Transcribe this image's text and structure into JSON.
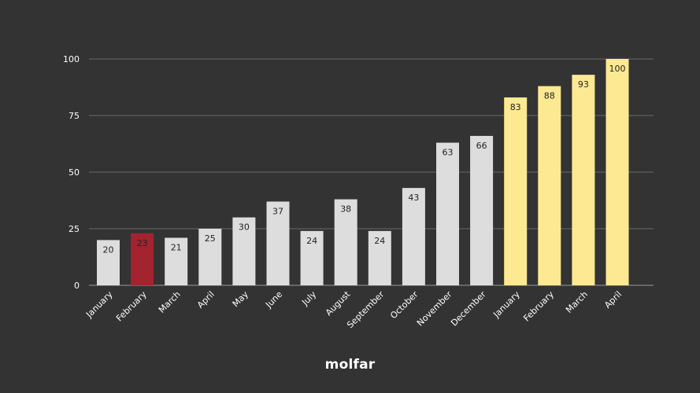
{
  "chart_data": {
    "type": "bar",
    "categories": [
      "January",
      "February",
      "March",
      "April",
      "May",
      "June",
      "July",
      "August",
      "September",
      "October",
      "November",
      "December",
      "January",
      "February",
      "March",
      "April"
    ],
    "values": [
      20,
      23,
      21,
      25,
      30,
      37,
      24,
      38,
      24,
      43,
      63,
      66,
      83,
      88,
      93,
      100
    ],
    "bar_colors": [
      "#dddddd",
      "#a3232f",
      "#dddddd",
      "#dddddd",
      "#dddddd",
      "#dddddd",
      "#dddddd",
      "#dddddd",
      "#dddddd",
      "#dddddd",
      "#dddddd",
      "#dddddd",
      "#fde992",
      "#fde992",
      "#fde992",
      "#fde992"
    ],
    "yticks": [
      0,
      25,
      50,
      75,
      100
    ],
    "ylim": [
      0,
      100
    ],
    "grid": true,
    "title": "",
    "xlabel": "",
    "ylabel": ""
  },
  "logo": {
    "text": "molfar"
  },
  "colors": {
    "background": "#333333",
    "text": "#ffffff"
  }
}
